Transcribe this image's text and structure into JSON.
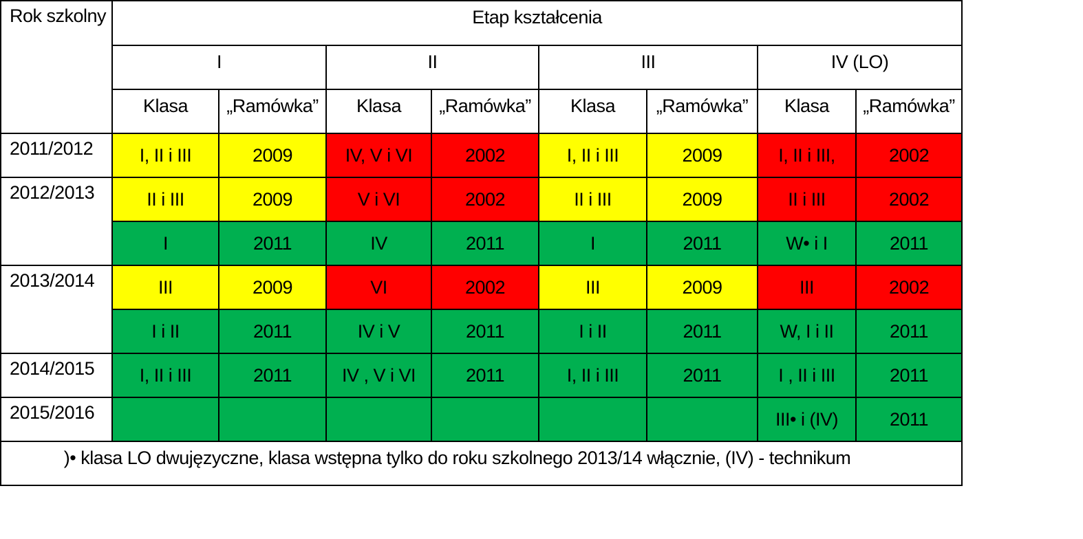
{
  "header": {
    "year_label": "Rok szkolny",
    "stage_label": "Etap kształcenia",
    "stages": [
      "I",
      "II",
      "III",
      "IV (LO)"
    ],
    "subheaders": [
      "Klasa",
      "„Ramówka”",
      "Klasa",
      "„Ramówka”",
      "Klasa",
      "„Ramówka”",
      "Klasa",
      "„Ramówka”"
    ]
  },
  "years": [
    "2011/2012",
    "2012/2013",
    "2013/2014",
    "2014/2015",
    "2015/2016"
  ],
  "rows": [
    {
      "cells": [
        "I,  II  i  III",
        "2009",
        "IV,  V   i  VI",
        "2002",
        "I,  II  i  III",
        "2009",
        "I,  II  i  III,",
        "2002"
      ]
    },
    {
      "cells": [
        "II  i  III",
        "2009",
        "V  i  VI",
        "2002",
        "II  i  III",
        "2009",
        "II  i  III",
        "2002"
      ]
    },
    {
      "cells": [
        "I",
        "2011",
        "IV",
        "2011",
        "I",
        "2011",
        "W•  i  I",
        "2011"
      ]
    },
    {
      "cells": [
        "III",
        "2009",
        "VI",
        "2002",
        "III",
        "2009",
        "III",
        "2002"
      ]
    },
    {
      "cells": [
        "I  i  II",
        "2011",
        "IV  i  V",
        "2011",
        "I  i  II",
        "2011",
        "W, I  i  II",
        "2011"
      ]
    },
    {
      "cells": [
        "I, II  i  III",
        "2011",
        "IV ,  V  i VI",
        "2011",
        "I,  II  i  III",
        "2011",
        "I ,  II  i  III",
        "2011"
      ]
    },
    {
      "cells": [
        "",
        "",
        "",
        "",
        "",
        "",
        "III•  i  (IV)",
        "2011"
      ]
    }
  ],
  "footnote": ")• klasa LO dwujęzyczne, klasa wstępna tylko do roku szkolnego 2013/14 włącznie, (IV) - technikum",
  "colors": {
    "yellow": "#ffff00",
    "red": "#ff0000",
    "green": "#00b050",
    "border": "#000000"
  }
}
